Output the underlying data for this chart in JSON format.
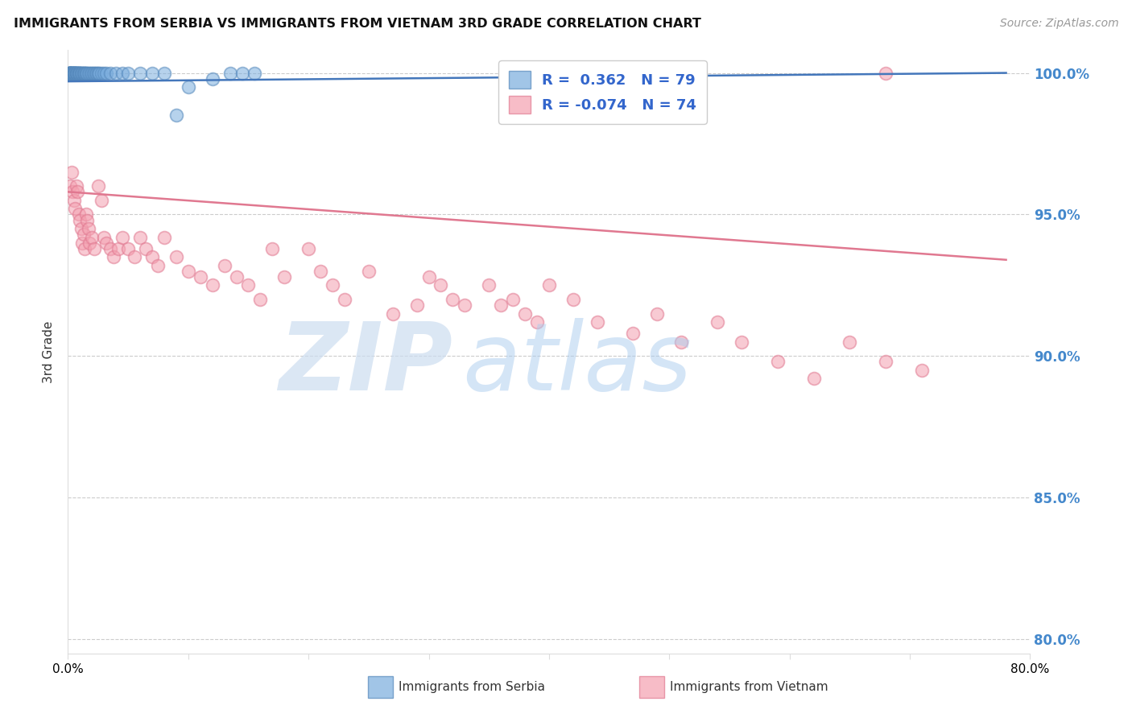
{
  "title": "IMMIGRANTS FROM SERBIA VS IMMIGRANTS FROM VIETNAM 3RD GRADE CORRELATION CHART",
  "source": "Source: ZipAtlas.com",
  "ylabel_left": "3rd Grade",
  "serbia_R": 0.362,
  "serbia_N": 79,
  "vietnam_R": -0.074,
  "vietnam_N": 74,
  "serbia_color": "#7AADDE",
  "vietnam_color": "#F4A0B0",
  "serbia_edge_color": "#5588BB",
  "vietnam_edge_color": "#E07890",
  "serbia_line_color": "#4477BB",
  "vietnam_line_color": "#E07890",
  "xlim": [
    0.0,
    0.8
  ],
  "ylim": [
    0.795,
    1.008
  ],
  "yticks": [
    0.8,
    0.85,
    0.9,
    0.95,
    1.0
  ],
  "ytick_labels": [
    "80.0%",
    "85.0%",
    "90.0%",
    "95.0%",
    "100.0%"
  ],
  "xtick_vals": [
    0.0,
    0.1,
    0.2,
    0.3,
    0.4,
    0.5,
    0.6,
    0.7,
    0.8
  ],
  "xtick_labels": [
    "0.0%",
    "",
    "",
    "",
    "",
    "",
    "",
    "",
    "80.0%"
  ],
  "grid_color": "#CCCCCC",
  "background_color": "#FFFFFF",
  "legend_label_serbia": "Immigrants from Serbia",
  "legend_label_vietnam": "Immigrants from Vietnam",
  "serbia_x": [
    0.001,
    0.001,
    0.001,
    0.001,
    0.001,
    0.002,
    0.002,
    0.002,
    0.002,
    0.002,
    0.002,
    0.003,
    0.003,
    0.003,
    0.003,
    0.003,
    0.004,
    0.004,
    0.004,
    0.004,
    0.005,
    0.005,
    0.005,
    0.005,
    0.005,
    0.006,
    0.006,
    0.006,
    0.006,
    0.007,
    0.007,
    0.007,
    0.007,
    0.008,
    0.008,
    0.008,
    0.009,
    0.009,
    0.009,
    0.01,
    0.01,
    0.01,
    0.011,
    0.011,
    0.012,
    0.012,
    0.013,
    0.013,
    0.014,
    0.014,
    0.015,
    0.015,
    0.016,
    0.017,
    0.018,
    0.019,
    0.02,
    0.021,
    0.022,
    0.023,
    0.024,
    0.025,
    0.026,
    0.028,
    0.03,
    0.032,
    0.035,
    0.04,
    0.045,
    0.05,
    0.06,
    0.07,
    0.08,
    0.09,
    0.1,
    0.12,
    0.135,
    0.145,
    0.155
  ],
  "serbia_y": [
    1.0,
    1.0,
    1.0,
    1.0,
    1.0,
    1.0,
    1.0,
    1.0,
    1.0,
    1.0,
    1.0,
    1.0,
    1.0,
    1.0,
    1.0,
    1.0,
    1.0,
    1.0,
    1.0,
    1.0,
    1.0,
    1.0,
    1.0,
    1.0,
    1.0,
    1.0,
    1.0,
    1.0,
    1.0,
    1.0,
    1.0,
    1.0,
    1.0,
    1.0,
    1.0,
    1.0,
    1.0,
    1.0,
    1.0,
    1.0,
    1.0,
    1.0,
    1.0,
    1.0,
    1.0,
    1.0,
    1.0,
    1.0,
    1.0,
    1.0,
    1.0,
    1.0,
    1.0,
    1.0,
    1.0,
    1.0,
    1.0,
    1.0,
    1.0,
    1.0,
    1.0,
    1.0,
    1.0,
    1.0,
    1.0,
    1.0,
    1.0,
    1.0,
    1.0,
    1.0,
    1.0,
    1.0,
    1.0,
    0.985,
    0.995,
    0.998,
    1.0,
    1.0,
    1.0
  ],
  "vietnam_x": [
    0.002,
    0.003,
    0.004,
    0.005,
    0.006,
    0.007,
    0.008,
    0.009,
    0.01,
    0.011,
    0.012,
    0.013,
    0.014,
    0.015,
    0.016,
    0.017,
    0.018,
    0.02,
    0.022,
    0.025,
    0.028,
    0.03,
    0.032,
    0.035,
    0.038,
    0.042,
    0.045,
    0.05,
    0.055,
    0.06,
    0.065,
    0.07,
    0.075,
    0.08,
    0.09,
    0.1,
    0.11,
    0.12,
    0.13,
    0.14,
    0.15,
    0.16,
    0.17,
    0.18,
    0.2,
    0.21,
    0.22,
    0.23,
    0.25,
    0.27,
    0.29,
    0.3,
    0.31,
    0.32,
    0.33,
    0.35,
    0.36,
    0.37,
    0.38,
    0.39,
    0.4,
    0.42,
    0.44,
    0.47,
    0.49,
    0.51,
    0.54,
    0.56,
    0.59,
    0.62,
    0.65,
    0.68,
    0.71,
    0.68
  ],
  "vietnam_y": [
    0.96,
    0.965,
    0.958,
    0.955,
    0.952,
    0.96,
    0.958,
    0.95,
    0.948,
    0.945,
    0.94,
    0.943,
    0.938,
    0.95,
    0.948,
    0.945,
    0.94,
    0.942,
    0.938,
    0.96,
    0.955,
    0.942,
    0.94,
    0.938,
    0.935,
    0.938,
    0.942,
    0.938,
    0.935,
    0.942,
    0.938,
    0.935,
    0.932,
    0.942,
    0.935,
    0.93,
    0.928,
    0.925,
    0.932,
    0.928,
    0.925,
    0.92,
    0.938,
    0.928,
    0.938,
    0.93,
    0.925,
    0.92,
    0.93,
    0.915,
    0.918,
    0.928,
    0.925,
    0.92,
    0.918,
    0.925,
    0.918,
    0.92,
    0.915,
    0.912,
    0.925,
    0.92,
    0.912,
    0.908,
    0.915,
    0.905,
    0.912,
    0.905,
    0.898,
    0.892,
    0.905,
    0.898,
    0.895,
    1.0
  ],
  "vietnam_trend_x0": 0.0,
  "vietnam_trend_y0": 0.958,
  "vietnam_trend_x1": 0.78,
  "vietnam_trend_y1": 0.934,
  "serbia_trend_x0": 0.0,
  "serbia_trend_y0": 0.997,
  "serbia_trend_x1": 0.78,
  "serbia_trend_y1": 1.0
}
